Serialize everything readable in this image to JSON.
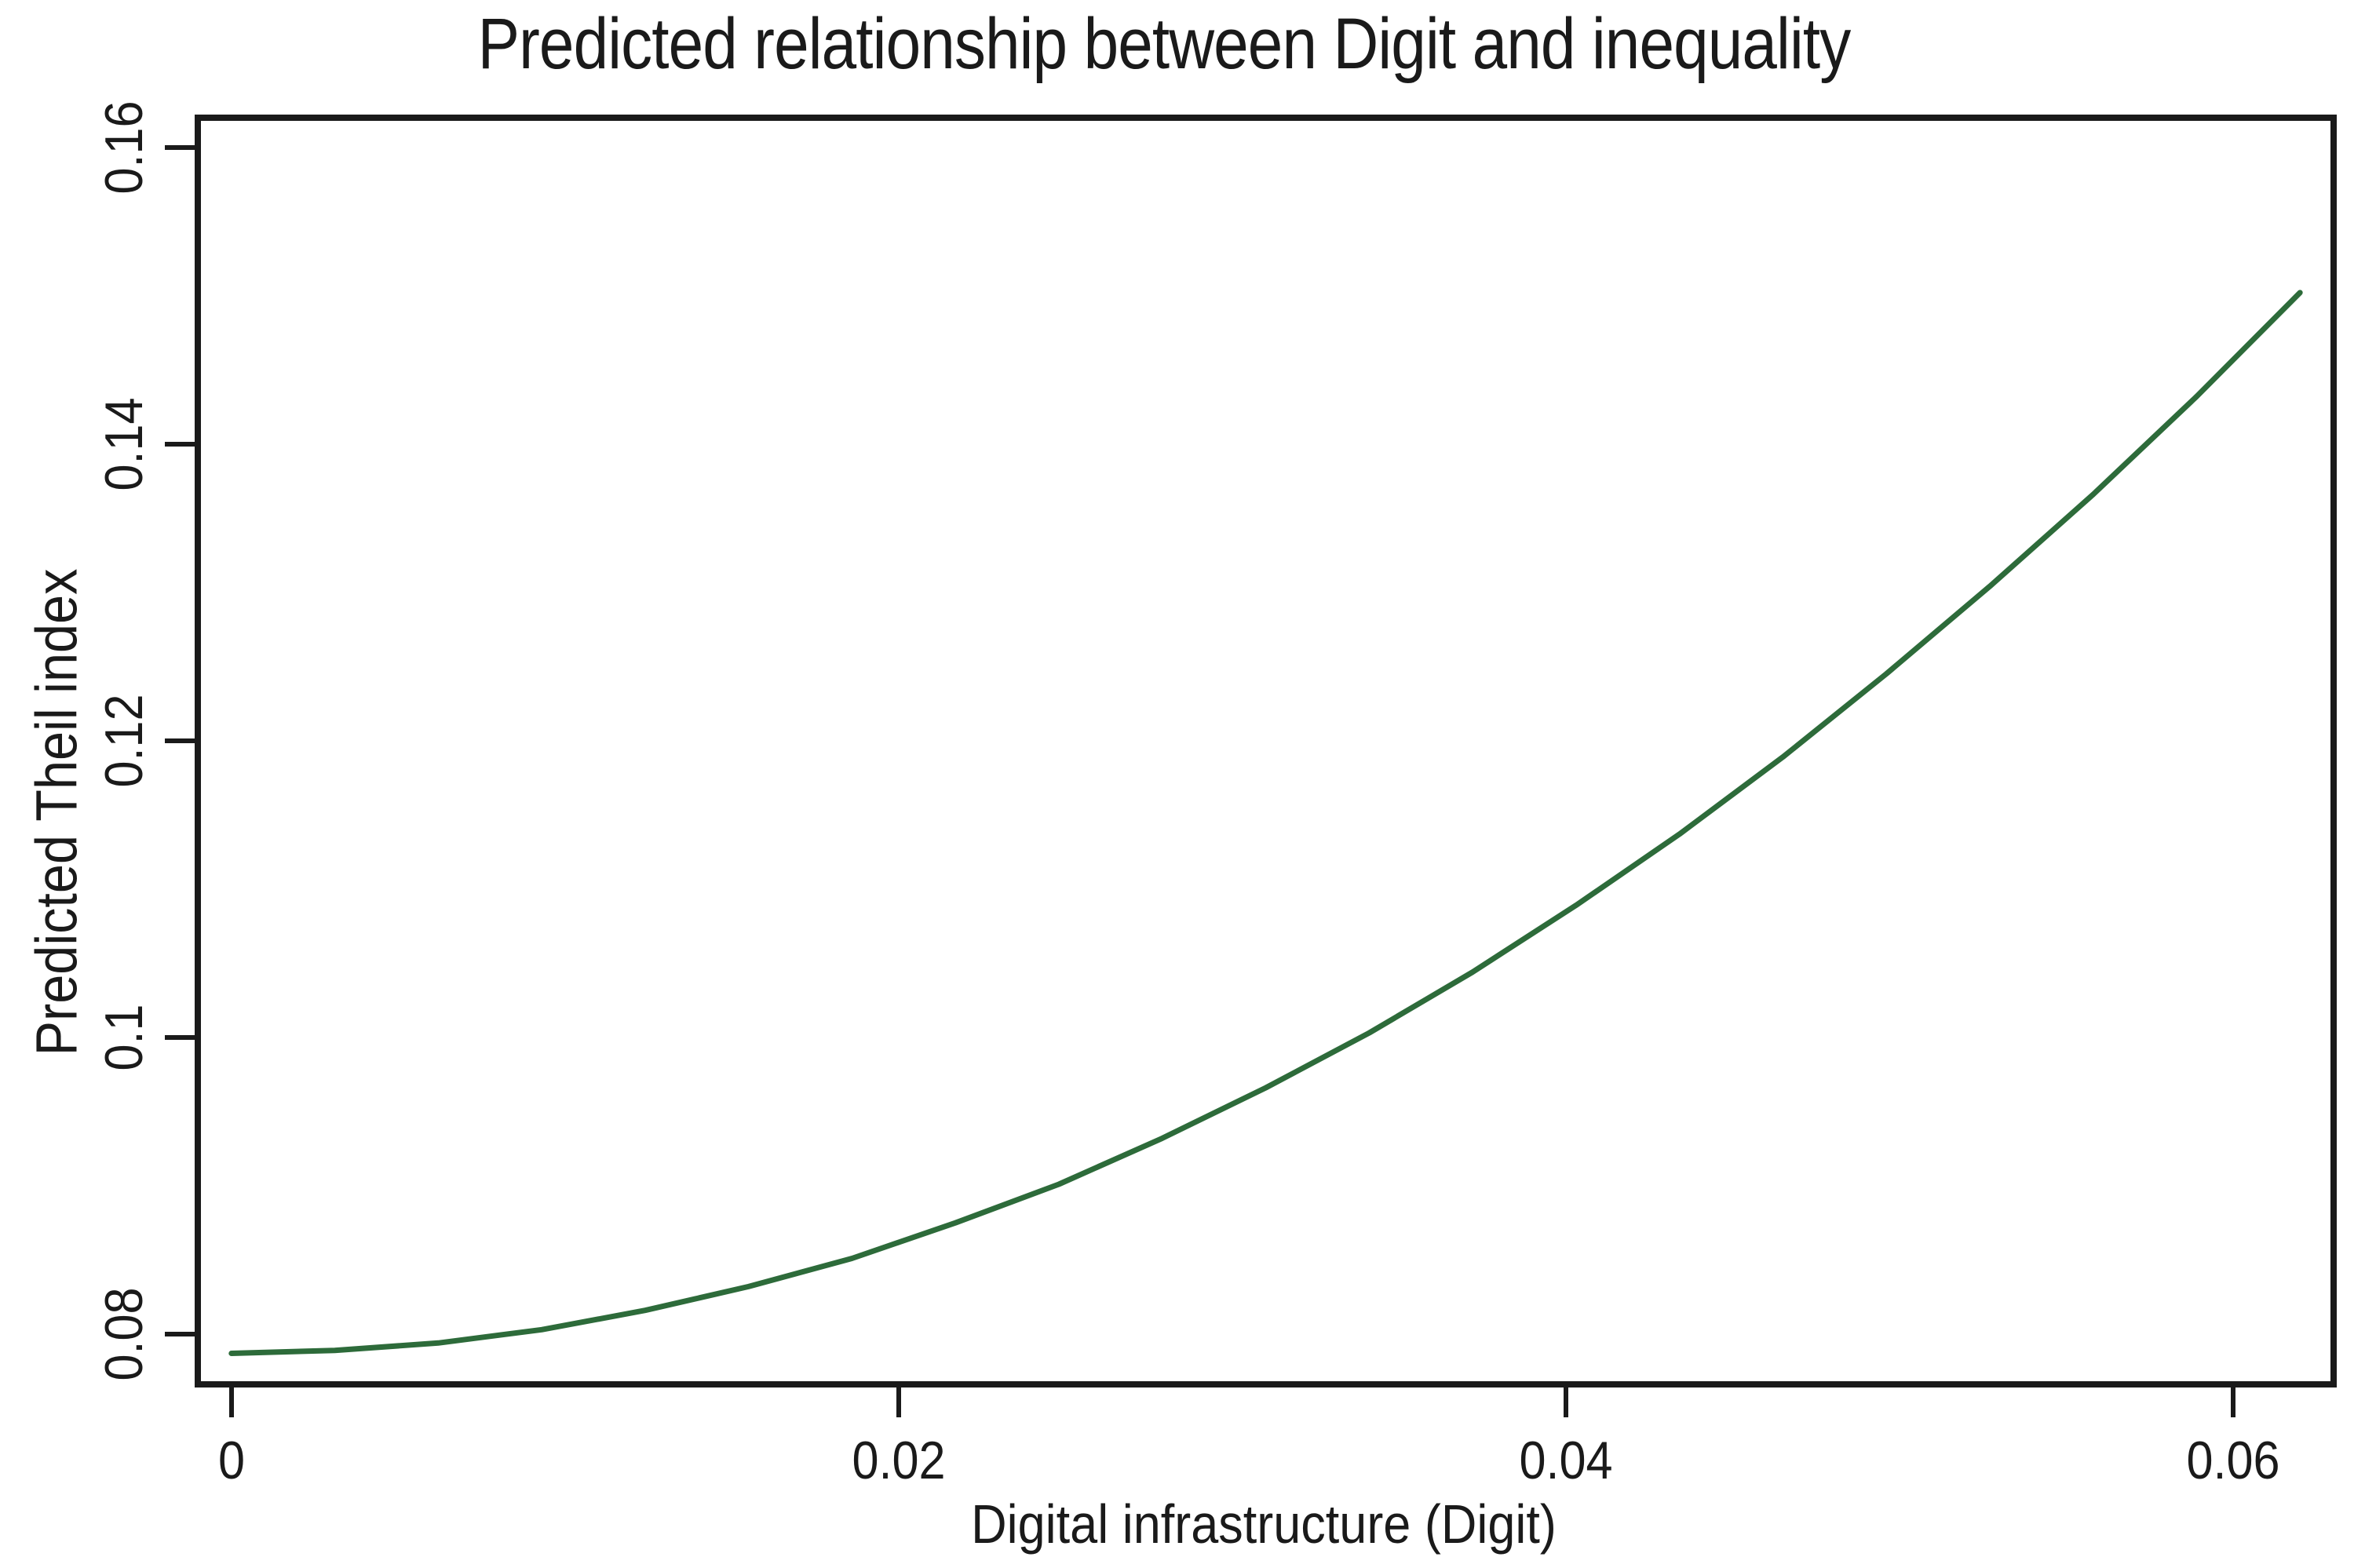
{
  "chart_data": {
    "type": "line",
    "title": "Predicted relationship between Digit and inequality",
    "xlabel": "Digital infrastructure (Digit)",
    "ylabel": "Predicted Theil index",
    "xlim": [
      -0.0011,
      0.0631
    ],
    "ylim": [
      0.0764,
      0.1622
    ],
    "grid": false,
    "legend_position": "none",
    "line_color": "#2d6b3a",
    "axis_color": "#1a1a1a",
    "x_ticks": [
      {
        "value": 0,
        "label": "0"
      },
      {
        "value": 0.02,
        "label": "0.02"
      },
      {
        "value": 0.04,
        "label": "0.04"
      },
      {
        "value": 0.06,
        "label": "0.06"
      }
    ],
    "y_ticks": [
      {
        "value": 0.08,
        "label": "0.08"
      },
      {
        "value": 0.1,
        "label": "0.1"
      },
      {
        "value": 0.12,
        "label": "0.12"
      },
      {
        "value": 0.14,
        "label": "0.14"
      },
      {
        "value": 0.16,
        "label": "0.16"
      }
    ],
    "series": [
      {
        "name": "Predicted Theil index",
        "x": [
          0,
          0.0031,
          0.0062,
          0.0093,
          0.0124,
          0.0155,
          0.0186,
          0.0217,
          0.0248,
          0.0279,
          0.031,
          0.0341,
          0.0372,
          0.0403,
          0.0434,
          0.0465,
          0.0496,
          0.0527,
          0.0558,
          0.0589,
          0.062
        ],
        "y": [
          0.0787,
          0.0789,
          0.0794,
          0.0803,
          0.0816,
          0.0832,
          0.0851,
          0.0875,
          0.0901,
          0.0932,
          0.0966,
          0.1003,
          0.1044,
          0.1089,
          0.1137,
          0.1189,
          0.1245,
          0.1304,
          0.1366,
          0.1432,
          0.1502
        ]
      }
    ]
  }
}
